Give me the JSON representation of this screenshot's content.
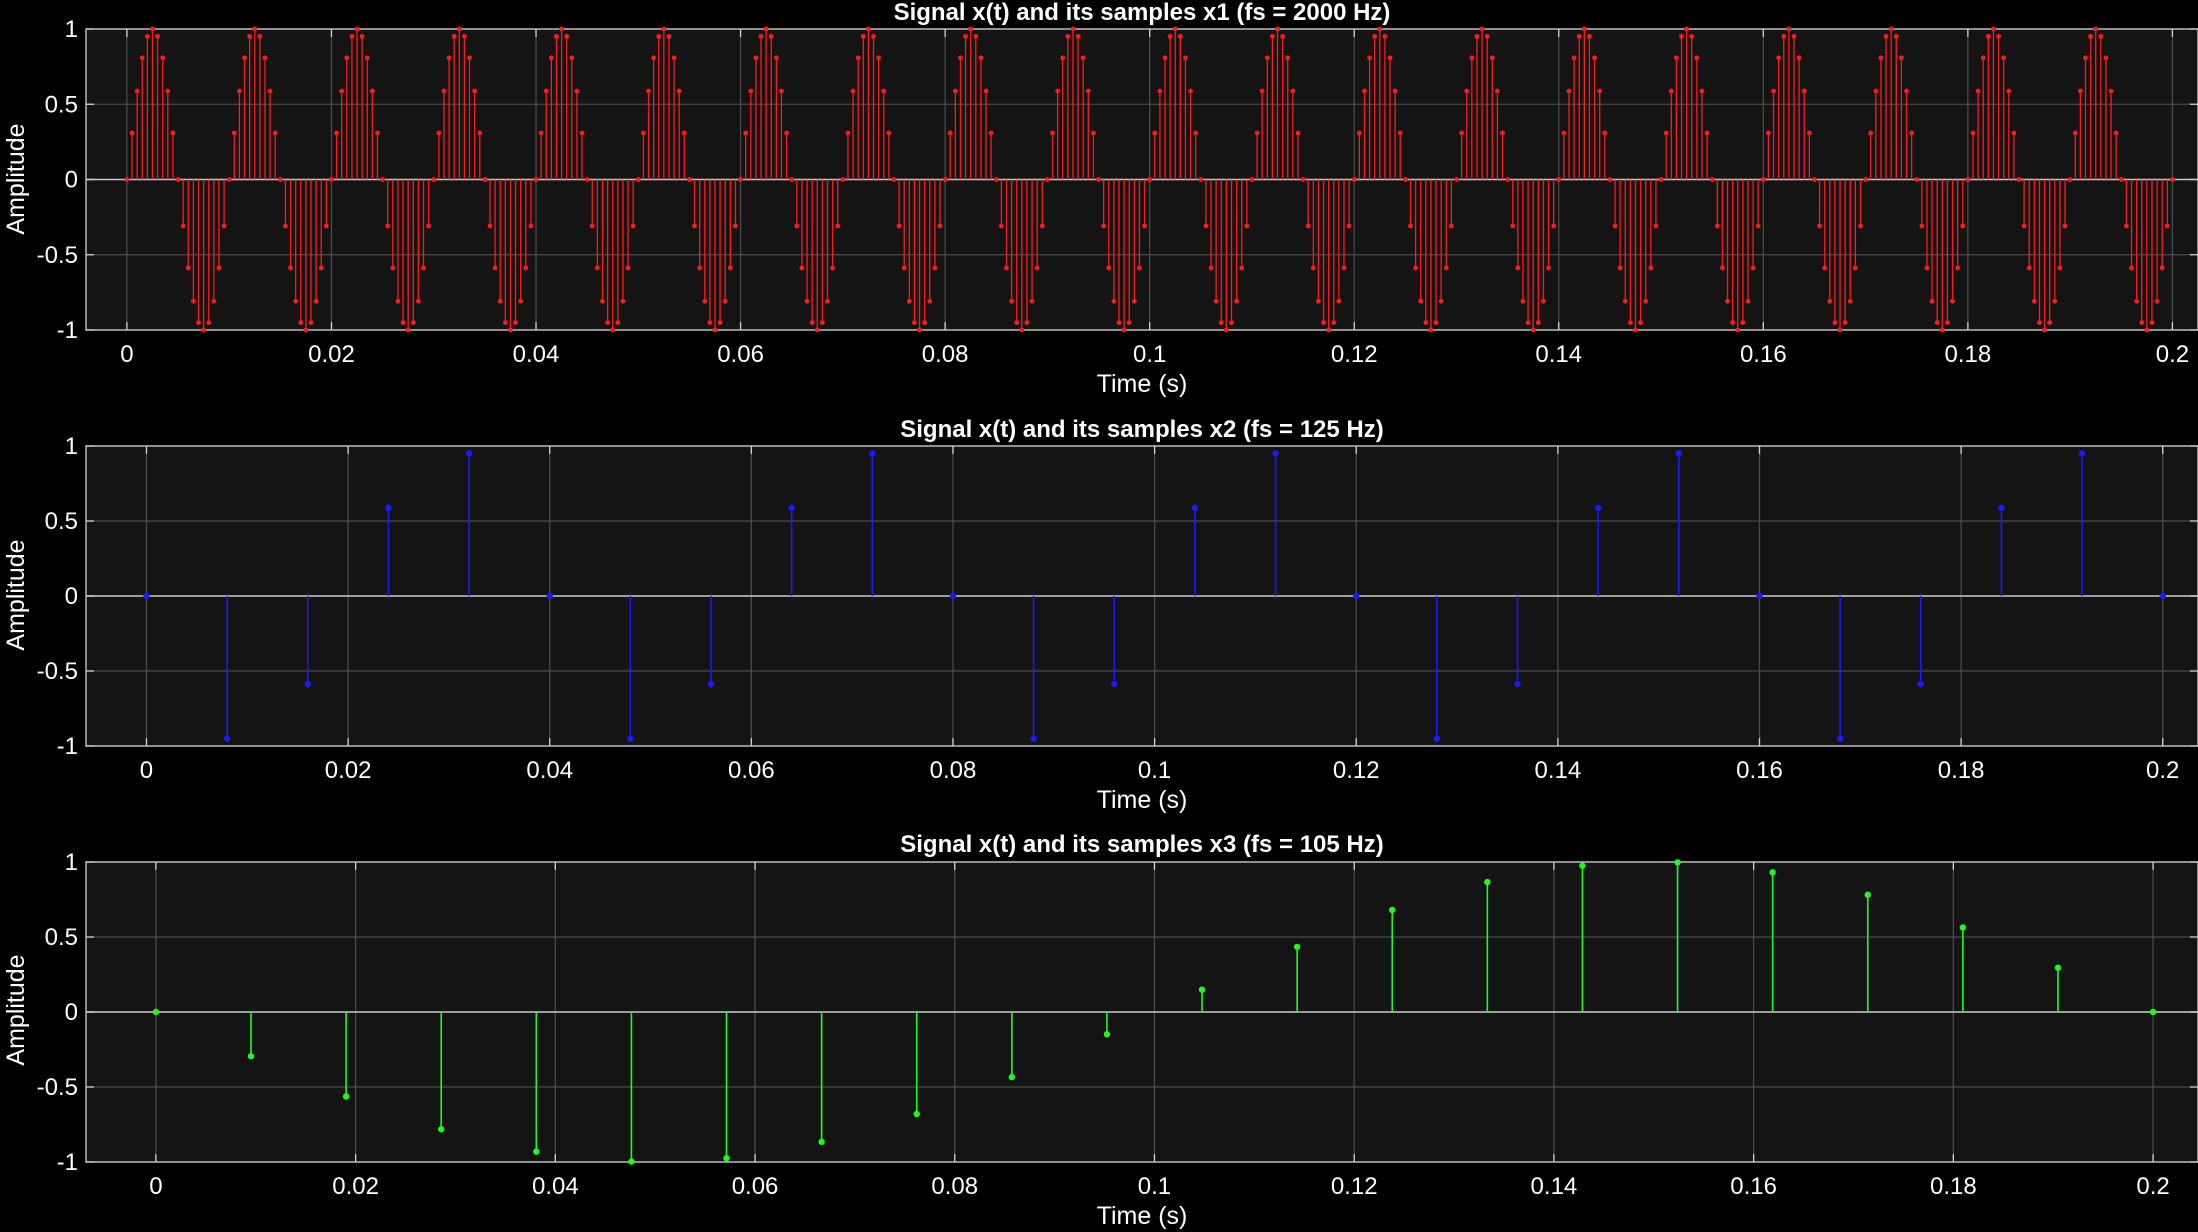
{
  "chart_data": [
    {
      "type": "stem",
      "title": "Signal x(t) and its samples x1 (fs = 2000 Hz)",
      "xlabel": "Time (s)",
      "ylabel": "Amplitude",
      "xlim": [
        -0.004,
        0.2025
      ],
      "ylim": [
        -1,
        1
      ],
      "xticks": [
        0,
        0.02,
        0.04,
        0.06,
        0.08,
        0.1,
        0.12,
        0.14,
        0.16,
        0.18,
        0.2
      ],
      "xtick_labels": [
        "0",
        "0.02",
        "0.04",
        "0.06",
        "0.08",
        "0.1",
        "0.12",
        "0.14",
        "0.16",
        "0.18",
        "0.2"
      ],
      "yticks": [
        -1,
        -0.5,
        0,
        0.5,
        1
      ],
      "ytick_labels": [
        "-1",
        "-0.5",
        "0",
        "0.5",
        "1"
      ],
      "grid": true,
      "color": "#ff1a1a",
      "signal": "x(t) = sin(2*pi*100*t)",
      "fs": 2000,
      "t_range": [
        0,
        0.2
      ]
    },
    {
      "type": "stem",
      "title": "Signal x(t) and its samples x2 (fs = 125 Hz)",
      "xlabel": "Time (s)",
      "ylabel": "Amplitude",
      "xlim": [
        -0.006,
        0.2035
      ],
      "ylim": [
        -1,
        1
      ],
      "xticks": [
        0,
        0.02,
        0.04,
        0.06,
        0.08,
        0.1,
        0.12,
        0.14,
        0.16,
        0.18,
        0.2
      ],
      "xtick_labels": [
        "0",
        "0.02",
        "0.04",
        "0.06",
        "0.08",
        "0.1",
        "0.12",
        "0.14",
        "0.16",
        "0.18",
        "0.2"
      ],
      "yticks": [
        -1,
        -0.5,
        0,
        0.5,
        1
      ],
      "ytick_labels": [
        "-1",
        "-0.5",
        "0",
        "0.5",
        "1"
      ],
      "grid": true,
      "color": "#1a1aff",
      "signal": "x(t) = sin(2*pi*100*t)",
      "fs": 125,
      "t_range": [
        0,
        0.2
      ]
    },
    {
      "type": "stem",
      "title": "Signal x(t) and its samples x3 (fs = 105 Hz)",
      "xlabel": "Time (s)",
      "ylabel": "Amplitude",
      "xlim": [
        -0.007,
        0.2045
      ],
      "ylim": [
        -1,
        1
      ],
      "xticks": [
        0,
        0.02,
        0.04,
        0.06,
        0.08,
        0.1,
        0.12,
        0.14,
        0.16,
        0.18,
        0.2
      ],
      "xtick_labels": [
        "0",
        "0.02",
        "0.04",
        "0.06",
        "0.08",
        "0.1",
        "0.12",
        "0.14",
        "0.16",
        "0.18",
        "0.2"
      ],
      "yticks": [
        -1,
        -0.5,
        0,
        0.5,
        1
      ],
      "ytick_labels": [
        "-1",
        "-0.5",
        "0",
        "0.5",
        "1"
      ],
      "grid": true,
      "color": "#1aff1a",
      "signal": "x(t) = sin(2*pi*100*t)",
      "fs": 105,
      "t_range": [
        0,
        0.2
      ]
    }
  ]
}
